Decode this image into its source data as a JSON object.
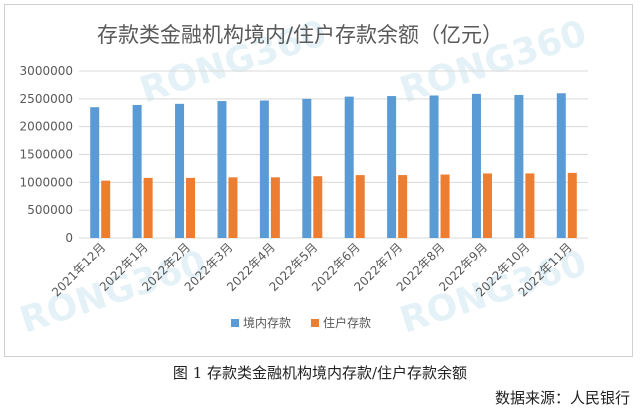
{
  "chart_data": {
    "type": "bar",
    "title": "存款类金融机构境内/住户存款余额（亿元）",
    "categories": [
      "2021年12月",
      "2022年1月",
      "2022年2月",
      "2022年3月",
      "2022年4月",
      "2022年5月",
      "2022年6月",
      "2022年7月",
      "2022年8月",
      "2022年9月",
      "2022年10月",
      "2022年11月"
    ],
    "series": [
      {
        "name": "境内存款",
        "color": "#5b9bd5",
        "values": [
          2350000,
          2390000,
          2410000,
          2460000,
          2470000,
          2500000,
          2540000,
          2550000,
          2560000,
          2590000,
          2570000,
          2600000
        ]
      },
      {
        "name": "住户存款",
        "color": "#ed7d31",
        "values": [
          1030000,
          1080000,
          1080000,
          1090000,
          1090000,
          1110000,
          1130000,
          1130000,
          1140000,
          1160000,
          1160000,
          1170000
        ]
      }
    ],
    "ylim": [
      0,
      3000000
    ],
    "yticks": [
      "0",
      "500000",
      "1000000",
      "1500000",
      "2000000",
      "2500000",
      "3000000"
    ],
    "grid": true,
    "legend_position": "bottom"
  },
  "watermark": "RONG360",
  "caption": "图 1  存款类金融机构境内存款/住户存款余额",
  "source": "数据来源：人民银行"
}
